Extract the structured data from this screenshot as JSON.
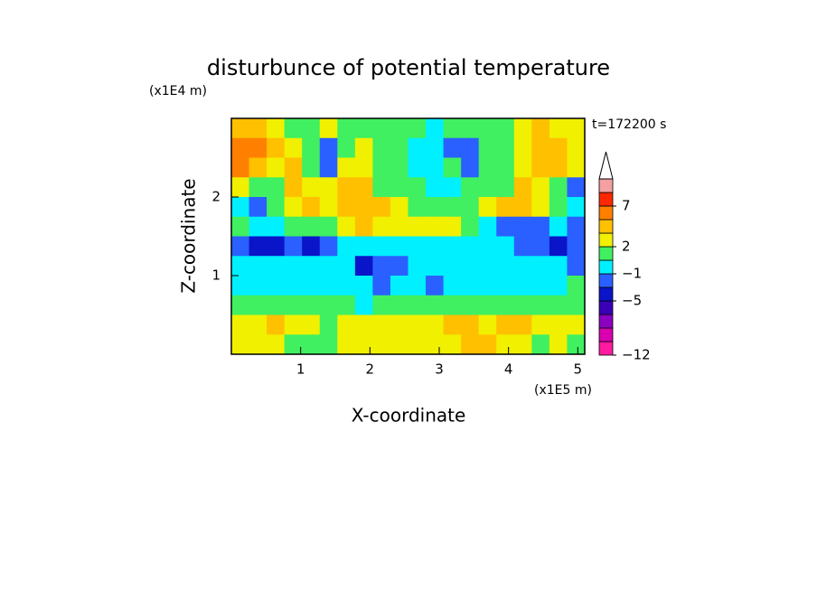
{
  "chart_data": {
    "type": "contour",
    "title": "disturbunce of potential temperature",
    "y_unit": "(x1E4 m)",
    "x_unit": "(x1E5 m)",
    "xlabel": "X-coordinate",
    "ylabel": "Z-coordinate",
    "annotation": "t=172200 s",
    "xlim": [
      0,
      5.1
    ],
    "ylim": [
      0,
      3
    ],
    "xticks": [
      1,
      2,
      3,
      4,
      5
    ],
    "yticks": [
      1,
      2
    ],
    "values": [
      [
        3,
        3,
        2,
        0,
        0,
        2,
        1,
        0,
        0,
        0,
        0,
        -1,
        0,
        1,
        0,
        0,
        2,
        3,
        2,
        2
      ],
      [
        5,
        5,
        3,
        2,
        0,
        -3,
        0,
        2,
        0,
        0,
        -1,
        -1,
        -3,
        -3,
        0,
        0,
        2,
        3,
        3,
        2
      ],
      [
        5,
        3,
        2,
        3,
        1,
        -3,
        2,
        2,
        0,
        0,
        -1,
        -1,
        0,
        -3,
        0,
        0,
        2,
        3,
        3,
        2
      ],
      [
        2,
        0,
        1,
        3,
        2,
        2,
        3,
        3,
        1,
        0,
        0,
        -1,
        -1,
        0,
        0,
        1,
        3,
        2,
        0,
        -3
      ],
      [
        -1,
        -3,
        0,
        2,
        3,
        2,
        3,
        3,
        3,
        2,
        1,
        0,
        0,
        0,
        2,
        3,
        3,
        2,
        0,
        -1
      ],
      [
        0,
        -1,
        -1,
        0,
        0,
        0,
        2,
        3,
        2,
        2,
        2,
        2,
        2,
        1,
        -1,
        -3,
        -3,
        -3,
        -1,
        -3
      ],
      [
        -3,
        -5,
        -5,
        -3,
        -5,
        -3,
        -1,
        -1,
        -1,
        -1,
        -1,
        -1,
        -1,
        -1,
        -1,
        -1,
        -3,
        -3,
        -5,
        -3
      ],
      [
        -1,
        -1,
        -1,
        -1,
        -1,
        -1,
        -1,
        -5,
        -3,
        -3,
        -1,
        -1,
        -1,
        -1,
        -1,
        -1,
        -1,
        -1,
        -1,
        -3
      ],
      [
        -1,
        -1,
        -1,
        -1,
        -1,
        -1,
        -1,
        -1,
        -3,
        -1,
        -1,
        -3,
        -1,
        -1,
        -1,
        -1,
        -1,
        -1,
        -1,
        0
      ],
      [
        1,
        0,
        0,
        0,
        0,
        0,
        0,
        -1,
        0,
        0,
        0,
        0,
        0,
        0,
        0,
        0,
        0,
        0,
        0,
        1
      ],
      [
        2,
        2,
        3,
        2,
        2,
        0,
        2,
        2,
        2,
        2,
        2,
        2,
        3,
        3,
        2,
        3,
        3,
        2,
        2,
        2
      ],
      [
        2,
        2,
        2,
        1,
        1,
        0,
        2,
        2,
        2,
        2,
        2,
        2,
        2,
        3,
        3,
        2,
        2,
        1,
        2,
        1
      ]
    ],
    "levels": [
      -12,
      -10,
      -8,
      -6,
      -5,
      -3,
      -1,
      0,
      2,
      3,
      5,
      7,
      9,
      11
    ],
    "colors": [
      "#ff1aa0",
      "#d800b0",
      "#8c00c0",
      "#3a00b8",
      "#0a14c8",
      "#2a60ff",
      "#00f0ff",
      "#40f060",
      "#f0f000",
      "#ffc000",
      "#ff8000",
      "#ff2800",
      "#f5a0a0"
    ],
    "colorbar_ticks": [
      {
        "value": 7,
        "label": "7"
      },
      {
        "value": 2,
        "label": "2"
      },
      {
        "value": -1,
        "label": "−1"
      },
      {
        "value": -5,
        "label": "−5"
      },
      {
        "value": -12,
        "label": "−12"
      }
    ]
  }
}
